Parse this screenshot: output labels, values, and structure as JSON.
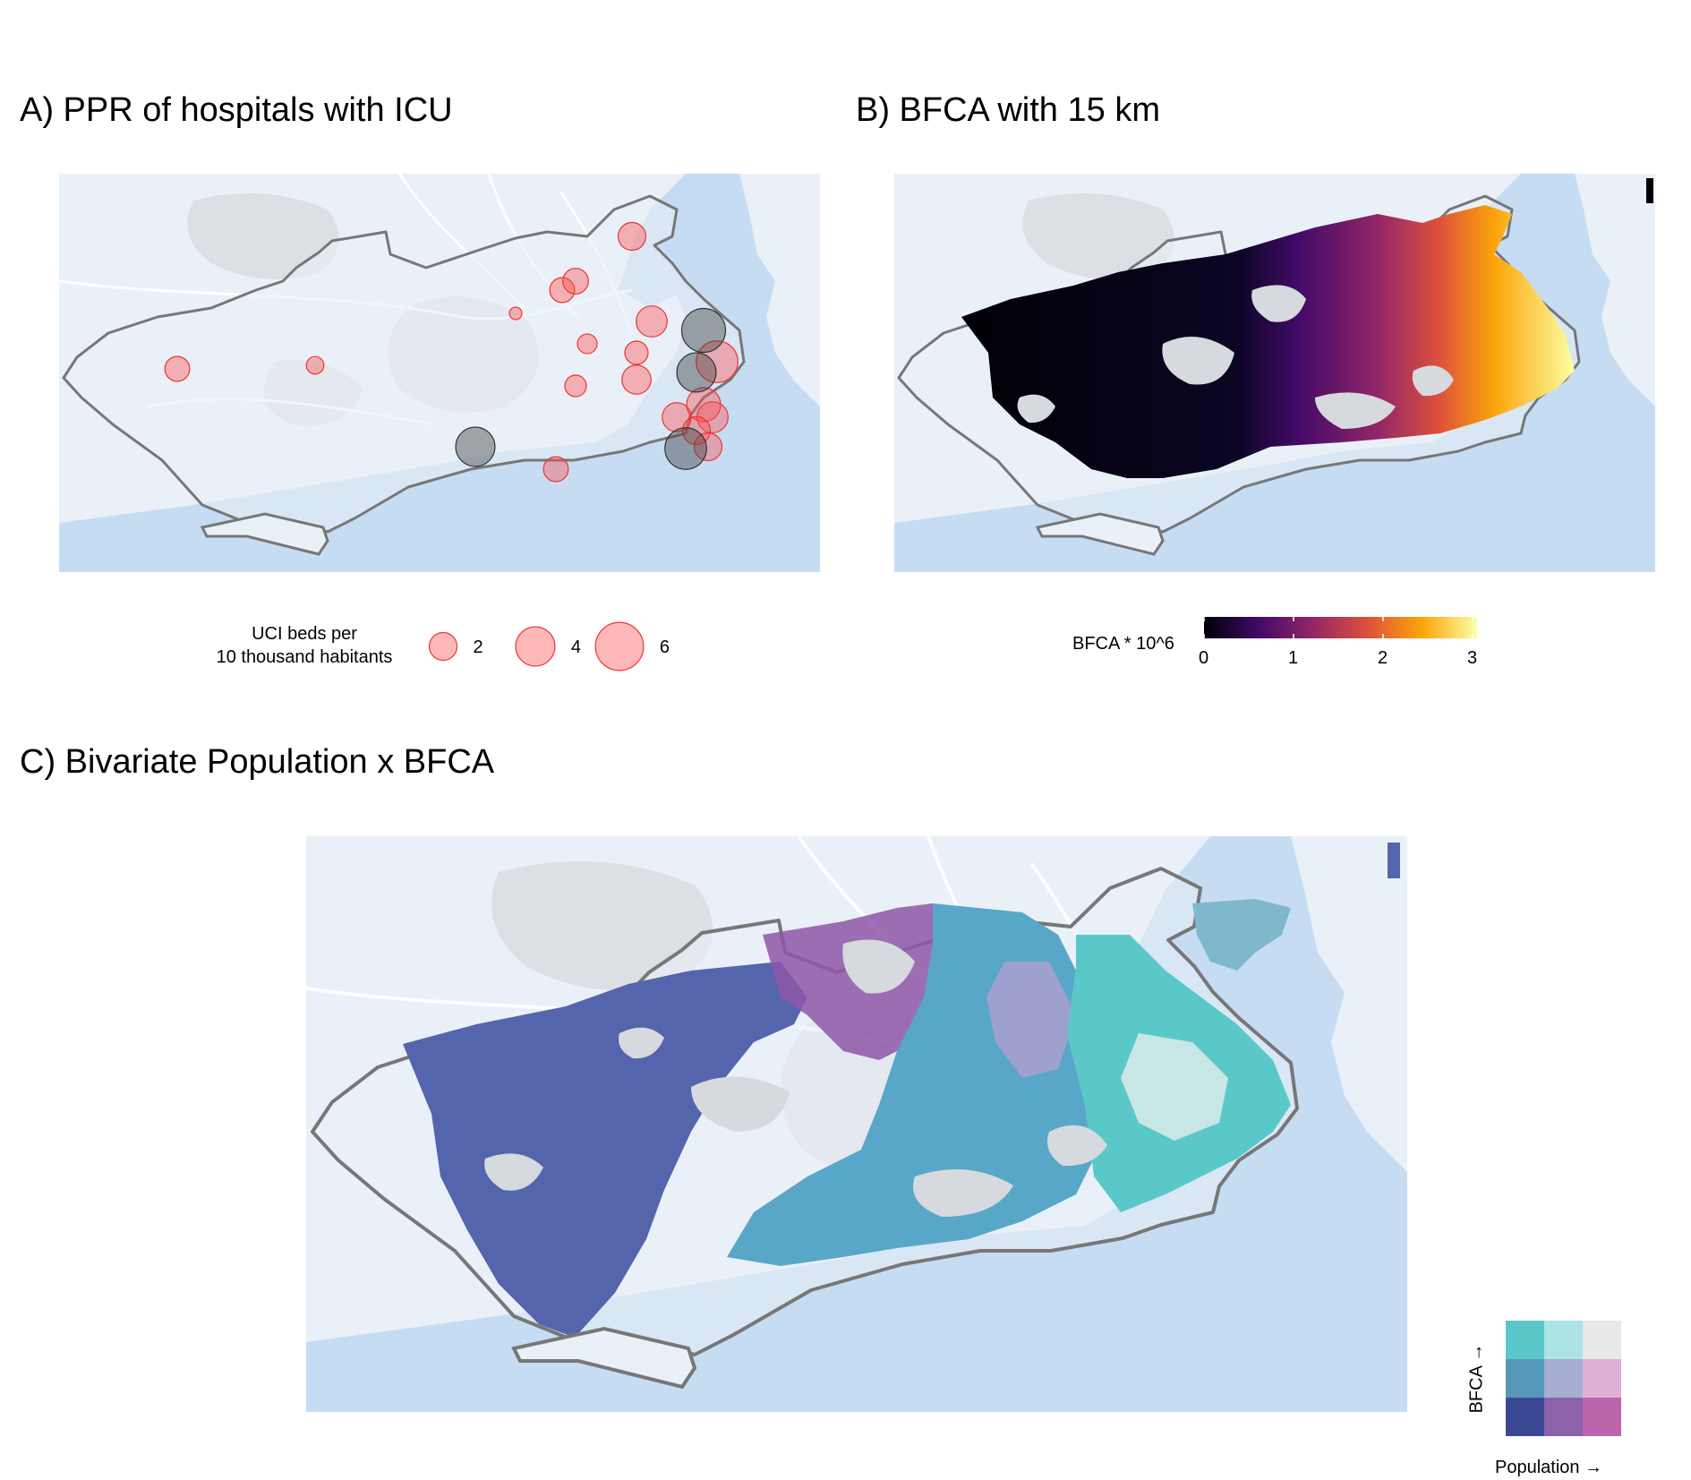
{
  "panel_a": {
    "title": "A) PPR of hospitals with ICU",
    "legend": {
      "title_line1": "UCI beds per",
      "title_line2": "10 thousand habitants",
      "entries": [
        {
          "label": "2",
          "value": 2
        },
        {
          "label": "4",
          "value": 4
        },
        {
          "label": "6",
          "value": 6
        }
      ],
      "fill_color": "#ff4d4d"
    },
    "hospitals": [
      {
        "kind": "red",
        "beds_per_10k": 1.6
      },
      {
        "kind": "red",
        "beds_per_10k": 0.8
      },
      {
        "kind": "red",
        "beds_per_10k": 1.6
      },
      {
        "kind": "red",
        "beds_per_10k": 1.7
      },
      {
        "kind": "red",
        "beds_per_10k": 2.0
      },
      {
        "kind": "red",
        "beds_per_10k": 0.4
      },
      {
        "kind": "red",
        "beds_per_10k": 1.0
      },
      {
        "kind": "red",
        "beds_per_10k": 1.4
      },
      {
        "kind": "red",
        "beds_per_10k": 1.2
      },
      {
        "kind": "red",
        "beds_per_10k": 2.5
      },
      {
        "kind": "red",
        "beds_per_10k": 2.2
      },
      {
        "kind": "red",
        "beds_per_10k": 4.5
      },
      {
        "kind": "red",
        "beds_per_10k": 3.0
      },
      {
        "kind": "red",
        "beds_per_10k": 2.2
      },
      {
        "kind": "red",
        "beds_per_10k": 2.5
      },
      {
        "kind": "red",
        "beds_per_10k": 2.0
      },
      {
        "kind": "red",
        "beds_per_10k": 2.0
      },
      {
        "kind": "red",
        "beds_per_10k": 1.6
      },
      {
        "kind": "grey",
        "beds_per_10k": 5.0
      },
      {
        "kind": "grey",
        "beds_per_10k": 4.0
      },
      {
        "kind": "grey",
        "beds_per_10k": 4.0
      },
      {
        "kind": "grey",
        "beds_per_10k": 4.5
      }
    ]
  },
  "panel_b": {
    "title": "B) BFCA with 15 km",
    "legend": {
      "title": "BFCA * 10^6",
      "ticks": [
        "0",
        "1",
        "2",
        "3"
      ],
      "range": [
        0,
        3
      ],
      "palette": "inferno",
      "colors": [
        "#000004",
        "#420a68",
        "#932667",
        "#dd513a",
        "#fca50a",
        "#fcffa4"
      ]
    }
  },
  "panel_c": {
    "title": "C) Bivariate Population x BFCA",
    "legend": {
      "x_label": "Population →",
      "y_label": "BFCA →",
      "grid": [
        [
          "#5ac8c8",
          "#ace4e4",
          "#e8e8e8"
        ],
        [
          "#5698b9",
          "#a5add3",
          "#dfb0d6"
        ],
        [
          "#3b4994",
          "#8c62aa",
          "#be64ac"
        ]
      ]
    }
  },
  "map_colors": {
    "water": "#c6dcf2",
    "land": "#eaf0f7",
    "relief": "#d6d9dd",
    "roads": "#ffffff",
    "boundary": "#777777"
  }
}
